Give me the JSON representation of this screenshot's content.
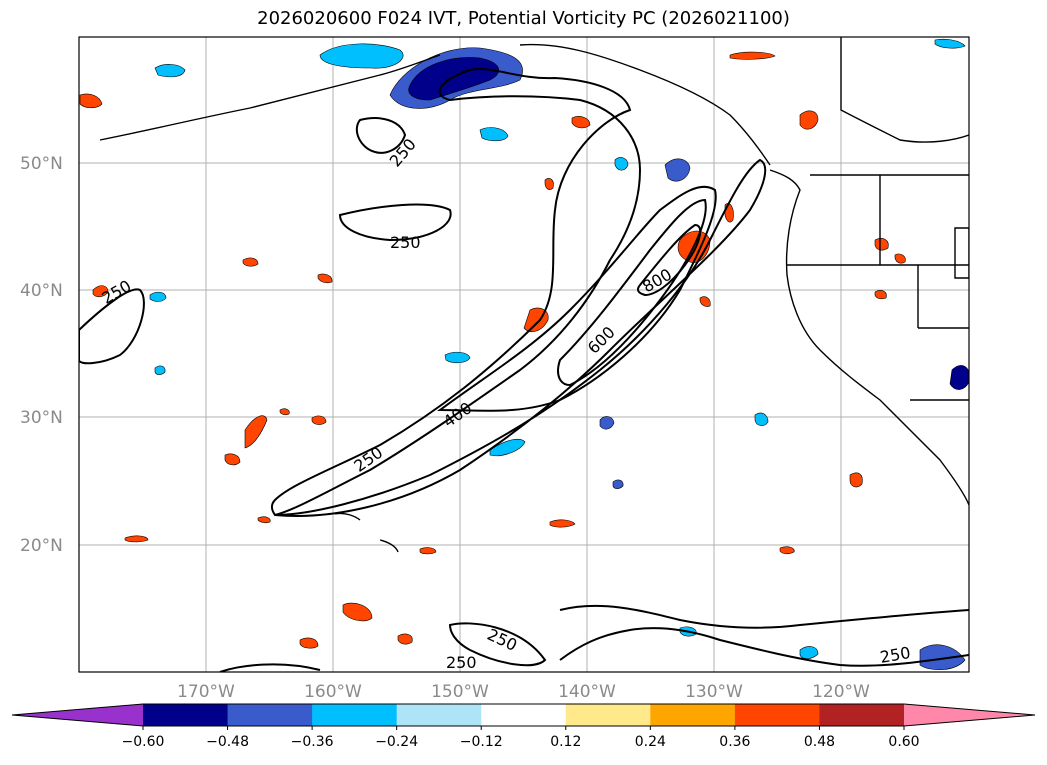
{
  "title": "2026020600 F024 IVT, Potential Vorticity PC (2026021100)",
  "lat_labels": [
    "50°N",
    "40°N",
    "30°N",
    "20°N"
  ],
  "lon_labels": [
    "170°W",
    "160°W",
    "150°W",
    "140°W",
    "130°W",
    "120°W"
  ],
  "contour_labels": [
    "250",
    "250",
    "250",
    "400",
    "600",
    "800",
    "250",
    "250",
    "250",
    "250"
  ],
  "colorbar": {
    "ticks": [
      "−0.60",
      "−0.48",
      "−0.36",
      "−0.24",
      "−0.12",
      "0.12",
      "0.24",
      "0.36",
      "0.48",
      "0.60"
    ],
    "colors": [
      "#9932cc",
      "#00008b",
      "#3a5bcc",
      "#00bfff",
      "#aee4f8",
      "#ffffff",
      "#ffe98a",
      "#ffa500",
      "#ff4500",
      "#b22222",
      "#ff88aa"
    ]
  }
}
